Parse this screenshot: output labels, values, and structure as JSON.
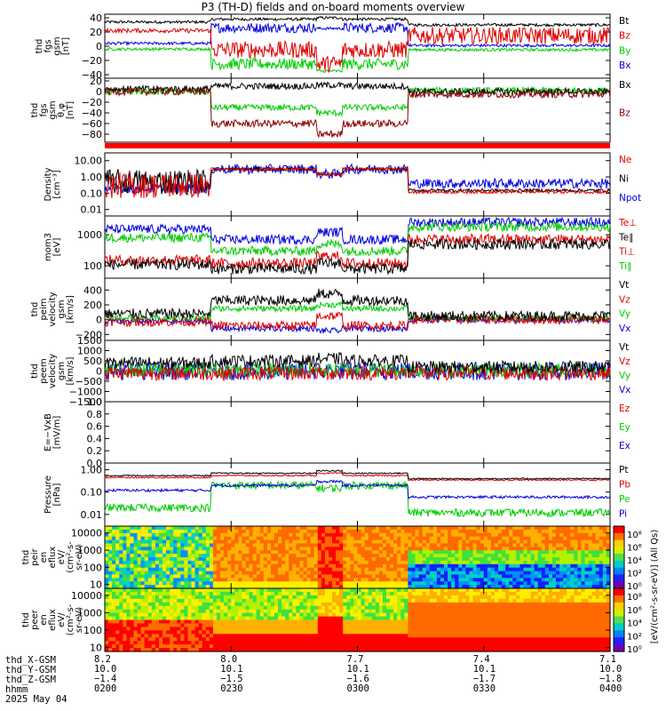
{
  "title": "P3 (TH-D) fields and on-board moments overview",
  "panels": [
    {
      "id": "fgs_gsm",
      "ylabel": [
        "thd",
        "fgs",
        "gsm",
        "[nT]"
      ],
      "ticks": [
        "40",
        "20",
        "0",
        "−20",
        "−40"
      ],
      "tickvals": [
        40,
        20,
        0,
        -20,
        -40
      ],
      "ylim": [
        -45,
        45
      ],
      "legend": [
        {
          "t": "Bt",
          "c": "#000000"
        },
        {
          "t": "Bz",
          "c": "#dd0000"
        },
        {
          "t": "By",
          "c": "#00cc00"
        },
        {
          "t": "Bx",
          "c": "#0000dd"
        }
      ]
    },
    {
      "id": "fgs_gse",
      "ylabel": [
        "thd",
        "fgs",
        "gsm",
        "θ,φ",
        "[nT]"
      ],
      "ticks": [
        "20",
        "0",
        "−20",
        "−40",
        "−60",
        "−80"
      ],
      "tickvals": [
        20,
        0,
        -20,
        -40,
        -60,
        -80
      ],
      "ylim": [
        -95,
        25
      ],
      "legend": [
        {
          "t": "Bx",
          "c": "#000000"
        },
        {
          "t": "Bz",
          "c": "#8b0000"
        }
      ]
    },
    {
      "id": "flag",
      "ylabel": [],
      "ticks": [],
      "legend": []
    },
    {
      "id": "density",
      "ylabel": [
        "Density",
        "[cm⁻³]"
      ],
      "ticks": [
        "10.00",
        "1.00",
        "0.10",
        "0.01"
      ],
      "tickvals": [
        10,
        1,
        0.1,
        0.01
      ],
      "log": true,
      "ylim": [
        0.004,
        30
      ],
      "legend": [
        {
          "t": "Ne",
          "c": "#dd0000"
        },
        {
          "t": "Ni",
          "c": "#000000"
        },
        {
          "t": "Npot",
          "c": "#0000dd"
        }
      ]
    },
    {
      "id": "temp",
      "ylabel": [
        "mom3",
        "[eV]"
      ],
      "ticks": [
        "1000",
        "100"
      ],
      "tickvals": [
        1000,
        100
      ],
      "log": true,
      "ylim": [
        40,
        4000
      ],
      "legend": [
        {
          "t": "Te⊥",
          "c": "#dd0000"
        },
        {
          "t": "Te∥",
          "c": "#000000"
        },
        {
          "t": "Ti⊥",
          "c": "#dd0000"
        },
        {
          "t": "Ti∥",
          "c": "#00cc00"
        }
      ]
    },
    {
      "id": "vi",
      "ylabel": [
        "thd",
        "peim",
        "velocity",
        "gsm",
        "[km/s]"
      ],
      "ticks": [
        "400",
        "200",
        "0",
        "−200"
      ],
      "tickvals": [
        400,
        200,
        0,
        -200
      ],
      "ylim": [
        -280,
        560
      ],
      "legend": [
        {
          "t": "Vt",
          "c": "#000000"
        },
        {
          "t": "Vz",
          "c": "#dd0000"
        },
        {
          "t": "Vy",
          "c": "#00cc00"
        },
        {
          "t": "Vx",
          "c": "#0000dd"
        }
      ]
    },
    {
      "id": "ve",
      "ylabel": [
        "thd",
        "peem",
        "velocity",
        "gsm",
        "[km/s]"
      ],
      "ticks": [
        "1500",
        "1000",
        "500",
        "0",
        "−500",
        "−1000",
        "−1500"
      ],
      "tickvals": [
        1500,
        1000,
        500,
        0,
        -500,
        -1000,
        -1500
      ],
      "ylim": [
        -1500,
        1500
      ],
      "legend": [
        {
          "t": "Vt",
          "c": "#000000"
        },
        {
          "t": "Vz",
          "c": "#dd0000"
        },
        {
          "t": "Vy",
          "c": "#00cc00"
        },
        {
          "t": "Vx",
          "c": "#0000dd"
        }
      ]
    },
    {
      "id": "efield",
      "ylabel": [
        "E=−VxB",
        "[mV/m]"
      ],
      "ticks": [
        "1.0",
        "0.8",
        "0.6",
        "0.4",
        "0.2",
        "0.0"
      ],
      "tickvals": [
        1.0,
        0.8,
        0.6,
        0.4,
        0.2,
        0.0
      ],
      "ylim": [
        0,
        1
      ],
      "legend": [
        {
          "t": "Ez",
          "c": "#dd0000"
        },
        {
          "t": "Ey",
          "c": "#00cc00"
        },
        {
          "t": "Ex",
          "c": "#0000dd"
        }
      ]
    },
    {
      "id": "pressure",
      "ylabel": [
        "Pressure",
        "[nPa]"
      ],
      "ticks": [
        "1.00",
        "0.10",
        "0.01"
      ],
      "tickvals": [
        1,
        0.1,
        0.01
      ],
      "log": true,
      "ylim": [
        0.003,
        2
      ],
      "legend": [
        {
          "t": "Pt",
          "c": "#000000"
        },
        {
          "t": "Pb",
          "c": "#dd0000"
        },
        {
          "t": "Pe",
          "c": "#00cc00"
        },
        {
          "t": "Pi",
          "c": "#0000dd"
        }
      ]
    },
    {
      "id": "ion_spec",
      "ylabel": [
        "thd",
        "peir",
        "en",
        "eflux",
        "eV/",
        "(cm²-s-",
        "sr-eV)"
      ],
      "ticks": [
        "10000",
        "1000",
        "100",
        "10"
      ],
      "tickvals": [
        10000,
        1000,
        100,
        10
      ],
      "log": true,
      "ylim": [
        6,
        25000
      ],
      "legend": []
    },
    {
      "id": "ele_spec",
      "ylabel": [
        "thd",
        "peer",
        "en",
        "eflux",
        "eV/",
        "(cm²-s-",
        "sr-eV)"
      ],
      "ticks": [
        "10000",
        "1000",
        "100",
        "10"
      ],
      "tickvals": [
        10000,
        1000,
        100,
        10
      ],
      "log": true,
      "ylim": [
        6,
        25000
      ],
      "legend": []
    }
  ],
  "colorbar": {
    "ticks_top": [
      "10⁸",
      "10⁶",
      "10⁴",
      "10²",
      "10⁰"
    ],
    "ticks_bot": [
      "10⁸",
      "10⁶",
      "10⁴",
      "10²",
      "10⁰"
    ],
    "label": "[eV/(cm²-s-sr-eV)] (All Qs)"
  },
  "ephemeris": {
    "labels": [
      "thd_X-GSM",
      "thd_Y-GSM",
      "thd_Z-GSM",
      "hhmm",
      "2025 May 04"
    ],
    "columns": [
      {
        "x": "8.2",
        "y": "10.0",
        "z": "−1.4",
        "t": "0200"
      },
      {
        "x": "8.0",
        "y": "10.1",
        "z": "−1.5",
        "t": "0230"
      },
      {
        "x": "7.7",
        "y": "10.1",
        "z": "−1.6",
        "t": "0300"
      },
      {
        "x": "7.4",
        "y": "10.1",
        "z": "−1.7",
        "t": "0330"
      },
      {
        "x": "7.1",
        "y": "10.0",
        "z": "−1.8",
        "t": "0400"
      }
    ]
  },
  "chart_data": {
    "type": "line",
    "title": "P3 (TH-D) fields and on-board moments overview",
    "x_range": [
      "02:00",
      "04:00"
    ],
    "x": [
      "02:00",
      "02:15",
      "02:30",
      "02:45",
      "03:00",
      "03:10",
      "03:15",
      "03:30",
      "03:45",
      "04:00"
    ],
    "series": [
      {
        "name": "Bt",
        "values": [
          35,
          32,
          38,
          36,
          40,
          40,
          34,
          30,
          28,
          30
        ]
      },
      {
        "name": "Bz",
        "values": [
          25,
          20,
          -10,
          5,
          -25,
          25,
          10,
          15,
          10,
          15
        ]
      },
      {
        "name": "By",
        "values": [
          -5,
          -10,
          -30,
          -20,
          -35,
          -10,
          -5,
          0,
          -2,
          -5
        ]
      },
      {
        "name": "Bx",
        "values": [
          5,
          0,
          25,
          25,
          25,
          25,
          5,
          2,
          0,
          2
        ]
      },
      {
        "name": "Ne",
        "values": [
          0.5,
          0.3,
          3.0,
          3.0,
          1.5,
          3.0,
          0.2,
          0.2,
          0.2,
          0.2
        ]
      },
      {
        "name": "Npot",
        "values": [
          0.1,
          0.1,
          0.05,
          0.05,
          0.05,
          0.05,
          1.0,
          0.5,
          1.0,
          0.1
        ]
      },
      {
        "name": "Pt",
        "values": [
          0.5,
          0.6,
          0.6,
          0.7,
          0.8,
          0.7,
          0.6,
          0.5,
          0.4,
          0.3
        ]
      },
      {
        "name": "Pe",
        "values": [
          0.02,
          0.02,
          0.2,
          0.2,
          0.15,
          0.2,
          0.01,
          0.01,
          0.01,
          0.008
        ]
      },
      {
        "name": "Pi",
        "values": [
          0.1,
          0.1,
          0.2,
          0.2,
          0.3,
          0.2,
          0.06,
          0.06,
          0.05,
          0.05
        ]
      }
    ]
  }
}
